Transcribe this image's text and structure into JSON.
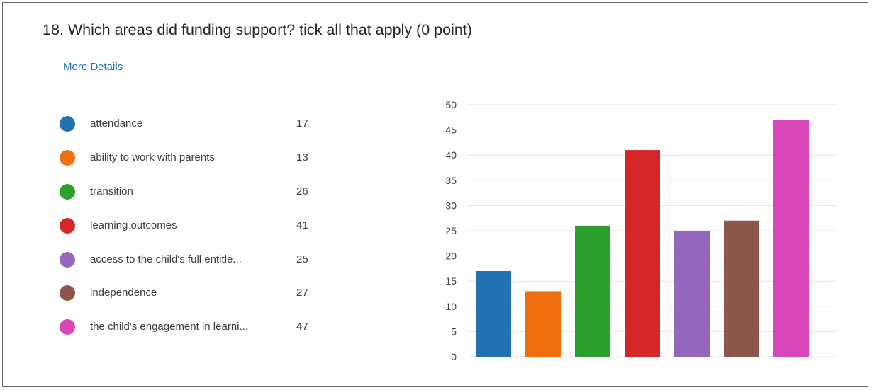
{
  "question": {
    "title": "18.  Which areas did funding support? tick all that apply (0 point)"
  },
  "links": {
    "more_details": "More Details"
  },
  "legend": {
    "items": [
      {
        "label": "attendance",
        "count": "17",
        "color": "#2171b5"
      },
      {
        "label": "ability to work with parents",
        "count": "13",
        "color": "#ef6f0f"
      },
      {
        "label": "transition",
        "count": "26",
        "color": "#2ca02c"
      },
      {
        "label": "learning outcomes",
        "count": "41",
        "color": "#d62728"
      },
      {
        "label": "access to the child's full entitle...",
        "count": "25",
        "color": "#9467bd"
      },
      {
        "label": "independence",
        "count": "27",
        "color": "#8c564b"
      },
      {
        "label": "the child's engagement in learni...",
        "count": "47",
        "color": "#d846b8"
      }
    ]
  },
  "chart_data": {
    "type": "bar",
    "title": "",
    "xlabel": "",
    "ylabel": "",
    "ylim": [
      0,
      50
    ],
    "yticks": [
      0,
      5,
      10,
      15,
      20,
      25,
      30,
      35,
      40,
      45,
      50
    ],
    "grid": true,
    "legend_placement": "left",
    "categories": [
      "attendance",
      "ability to work with parents",
      "transition",
      "learning outcomes",
      "access to the child's full entitle...",
      "independence",
      "the child's engagement in learni..."
    ],
    "values": [
      17,
      13,
      26,
      41,
      25,
      27,
      47
    ],
    "colors": [
      "#2171b5",
      "#ef6f0f",
      "#2ca02c",
      "#d62728",
      "#9467bd",
      "#8c564b",
      "#d846b8"
    ]
  }
}
